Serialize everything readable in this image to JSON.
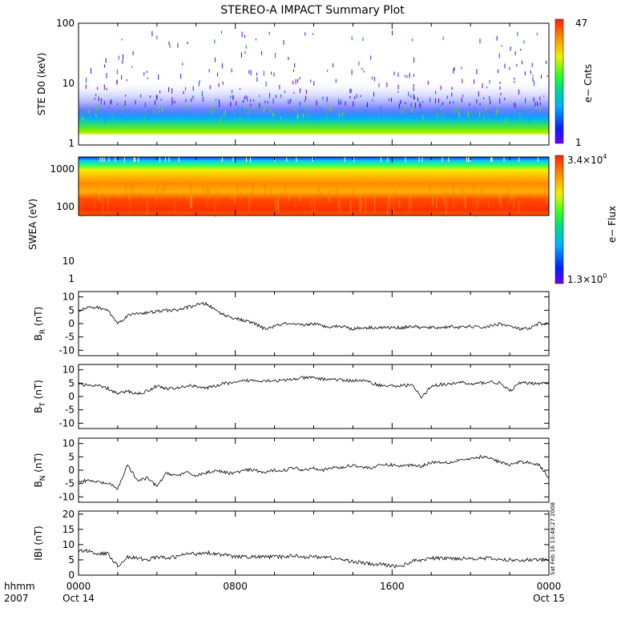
{
  "chart_data": {
    "type": "line",
    "title": "STEREO-A IMPACT Summary Plot",
    "x_axis": {
      "label_line1": "hhmm",
      "label_line2": "2007",
      "ticks": [
        {
          "t": 0,
          "time": "0000",
          "date": "Oct 14"
        },
        {
          "t": 8,
          "time": "0800",
          "date": ""
        },
        {
          "t": 16,
          "time": "1600",
          "date": ""
        },
        {
          "t": 24,
          "time": "0000",
          "date": "Oct 15"
        }
      ],
      "range_hours": [
        0,
        24
      ]
    },
    "timestamp_note": "Sat Feb 16 13:48:27 2008",
    "panels": [
      {
        "id": "ste",
        "type": "heatmap",
        "ylabel": "STE D0 (keV)",
        "yscale": "log",
        "ylim": [
          1,
          100
        ],
        "yticks": [
          "1",
          "10",
          "100"
        ],
        "colorbar": {
          "label": "e− Cnts",
          "max": "47",
          "min": "1"
        }
      },
      {
        "id": "swea",
        "type": "heatmap",
        "ylabel": "SWEA (eV)",
        "yscale": "log",
        "ylim": [
          0.9,
          2000
        ],
        "yticks": [
          "1",
          "10",
          "100",
          "1000"
        ],
        "colorbar": {
          "label": "e− Flux",
          "max_mant": "3.4×10",
          "max_exp": "4",
          "min_mant": "1.3×10",
          "min_exp": "0"
        }
      },
      {
        "id": "br",
        "type": "line",
        "ylabel_main": "B",
        "ylabel_sub": "R",
        "ylabel_unit": " (nT)",
        "ylim": [
          -12,
          12
        ],
        "yticks": [
          "10",
          "5",
          "0",
          "-5",
          "-10"
        ],
        "ytick_vals": [
          10,
          5,
          0,
          -5,
          -10
        ],
        "series": {
          "t": [
            0,
            0.5,
            1,
            1.5,
            2,
            2.5,
            3,
            3.5,
            4,
            4.5,
            5,
            5.5,
            6,
            6.5,
            7,
            7.5,
            8,
            8.5,
            9,
            9.5,
            10,
            10.5,
            11,
            11.5,
            12,
            12.5,
            13,
            13.5,
            14,
            14.5,
            15,
            15.5,
            16,
            16.5,
            17,
            17.5,
            18,
            18.5,
            19,
            19.5,
            20,
            20.5,
            21,
            21.5,
            22,
            22.5,
            23,
            23.5,
            24
          ],
          "v": [
            5,
            6,
            6,
            5,
            0,
            3,
            4,
            4,
            4.5,
            5,
            5,
            6,
            7,
            7.5,
            5,
            3,
            2,
            1,
            0,
            -2,
            -1,
            0,
            -0.5,
            -0.5,
            0,
            -1,
            -1,
            -1,
            -2,
            -1.5,
            -1.5,
            -1.5,
            -1.5,
            -1.5,
            -1,
            -1.5,
            -1.5,
            -1.5,
            -1,
            -1.5,
            -1,
            -1.5,
            -1,
            0,
            -1,
            -2,
            -2,
            0,
            0
          ]
        }
      },
      {
        "id": "bt",
        "type": "line",
        "ylabel_main": "B",
        "ylabel_sub": "T",
        "ylabel_unit": " (nT)",
        "ylim": [
          -12,
          12
        ],
        "yticks": [
          "10",
          "5",
          "0",
          "-5",
          "-10"
        ],
        "ytick_vals": [
          10,
          5,
          0,
          -5,
          -10
        ],
        "series": {
          "t": [
            0,
            0.5,
            1,
            1.5,
            2,
            2.5,
            3,
            3.5,
            4,
            4.5,
            5,
            5.5,
            6,
            6.5,
            7,
            7.5,
            8,
            8.5,
            9,
            9.5,
            10,
            10.5,
            11,
            11.5,
            12,
            12.5,
            13,
            13.5,
            14,
            14.5,
            15,
            15.5,
            16,
            16.5,
            17,
            17.5,
            18,
            18.5,
            19,
            19.5,
            20,
            20.5,
            21,
            21.5,
            22,
            22.5,
            23,
            23.5,
            24
          ],
          "v": [
            5,
            4,
            4,
            3,
            1,
            2,
            1,
            2,
            4,
            3,
            3,
            4,
            4,
            3,
            4,
            5,
            5,
            6,
            6,
            6,
            6,
            6,
            6.5,
            7,
            7,
            6.5,
            6.5,
            6,
            6,
            6,
            5,
            4,
            4,
            4,
            4.5,
            -0.5,
            4,
            4.5,
            4.5,
            5.5,
            4.5,
            5,
            5.5,
            5,
            2,
            5,
            5,
            5,
            5
          ]
        }
      },
      {
        "id": "bn",
        "type": "line",
        "ylabel_main": "B",
        "ylabel_sub": "N",
        "ylabel_unit": " (nT)",
        "ylim": [
          -12,
          12
        ],
        "yticks": [
          "10",
          "5",
          "0",
          "-5",
          "-10"
        ],
        "ytick_vals": [
          10,
          5,
          0,
          -5,
          -10
        ],
        "series": {
          "t": [
            0,
            0.5,
            1,
            1.5,
            2,
            2.5,
            3,
            3.5,
            4,
            4.5,
            5,
            5.5,
            6,
            6.5,
            7,
            7.5,
            8,
            8.5,
            9,
            9.5,
            10,
            10.5,
            11,
            11.5,
            12,
            12.5,
            13,
            13.5,
            14,
            14.5,
            15,
            15.5,
            16,
            16.5,
            17,
            17.5,
            18,
            18.5,
            19,
            19.5,
            20,
            20.5,
            21,
            21.5,
            22,
            22.5,
            23,
            23.5,
            24
          ],
          "v": [
            -4,
            -4,
            -4.5,
            -5,
            -7,
            2,
            -4,
            -3,
            -6,
            -1,
            -2,
            -1,
            -2,
            -1,
            0,
            -1,
            -1,
            0,
            0,
            -1,
            0,
            0,
            1,
            0,
            1,
            0,
            1,
            1,
            2,
            1,
            1,
            2,
            2,
            1.5,
            2,
            1.5,
            3,
            3,
            3,
            4,
            4,
            5,
            4.5,
            3,
            2,
            3,
            3,
            2,
            -3
          ]
        }
      },
      {
        "id": "bmag",
        "type": "line",
        "ylabel_main": "IBI",
        "ylabel_sub": "",
        "ylabel_unit": " (nT)",
        "ylim": [
          0,
          21
        ],
        "yticks": [
          "20",
          "15",
          "10",
          "5",
          "0"
        ],
        "ytick_vals": [
          20,
          15,
          10,
          5,
          0
        ],
        "series": {
          "t": [
            0,
            0.5,
            1,
            1.5,
            2,
            2.5,
            3,
            3.5,
            4,
            4.5,
            5,
            5.5,
            6,
            6.5,
            7,
            7.5,
            8,
            8.5,
            9,
            9.5,
            10,
            10.5,
            11,
            11.5,
            12,
            12.5,
            13,
            13.5,
            14,
            14.5,
            15,
            15.5,
            16,
            16.5,
            17,
            17.5,
            18,
            18.5,
            19,
            19.5,
            20,
            20.5,
            21,
            21.5,
            22,
            22.5,
            23,
            23.5,
            24
          ],
          "v": [
            8,
            8,
            7,
            7,
            3,
            6,
            5.5,
            5,
            6,
            5.5,
            6,
            7,
            7,
            7.5,
            7,
            6.5,
            6,
            6,
            6,
            6,
            6,
            6,
            6.5,
            6,
            6,
            6,
            5.5,
            5,
            4.5,
            4,
            3.5,
            3.5,
            3,
            3,
            4.5,
            5,
            5.5,
            5.5,
            5.5,
            5.5,
            5.5,
            5.5,
            5.5,
            5,
            5,
            5,
            5,
            5,
            5
          ]
        }
      }
    ]
  }
}
